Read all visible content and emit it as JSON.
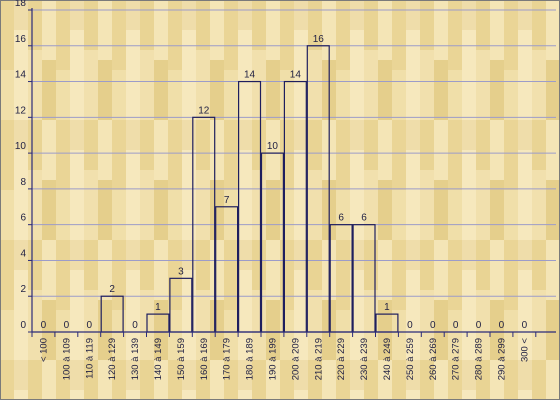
{
  "chart_data": {
    "type": "bar",
    "title": "",
    "xlabel": "",
    "ylabel": "",
    "ylim": [
      0,
      18
    ],
    "yticks": [
      0,
      2,
      4,
      6,
      8,
      10,
      12,
      14,
      16,
      18
    ],
    "grid": true,
    "categories": [
      "< 100",
      "100 à 109",
      "110 à 119",
      "120 à 129",
      "130 à 139",
      "140 à 149",
      "150 à 159",
      "160 à 169",
      "170 à 179",
      "180 à 189",
      "190 à 199",
      "200 à 209",
      "210 à 219",
      "220 à 229",
      "230 à 239",
      "240 à 249",
      "250 à 259",
      "260 à 269",
      "270 à 279",
      "280 à 289",
      "290 à 299",
      "300 <"
    ],
    "values": [
      0,
      0,
      0,
      2,
      0,
      1,
      3,
      12,
      7,
      14,
      10,
      14,
      16,
      6,
      6,
      1,
      0,
      0,
      0,
      0,
      0,
      0
    ],
    "colors": {
      "background_light": "#f5e6b5",
      "background_dark": "#e3cf93",
      "grid": "#9c9cc9",
      "axis": "#2b2b7a",
      "bar_outline": "#1e1e5e",
      "frame": "#7a7a7a"
    }
  }
}
